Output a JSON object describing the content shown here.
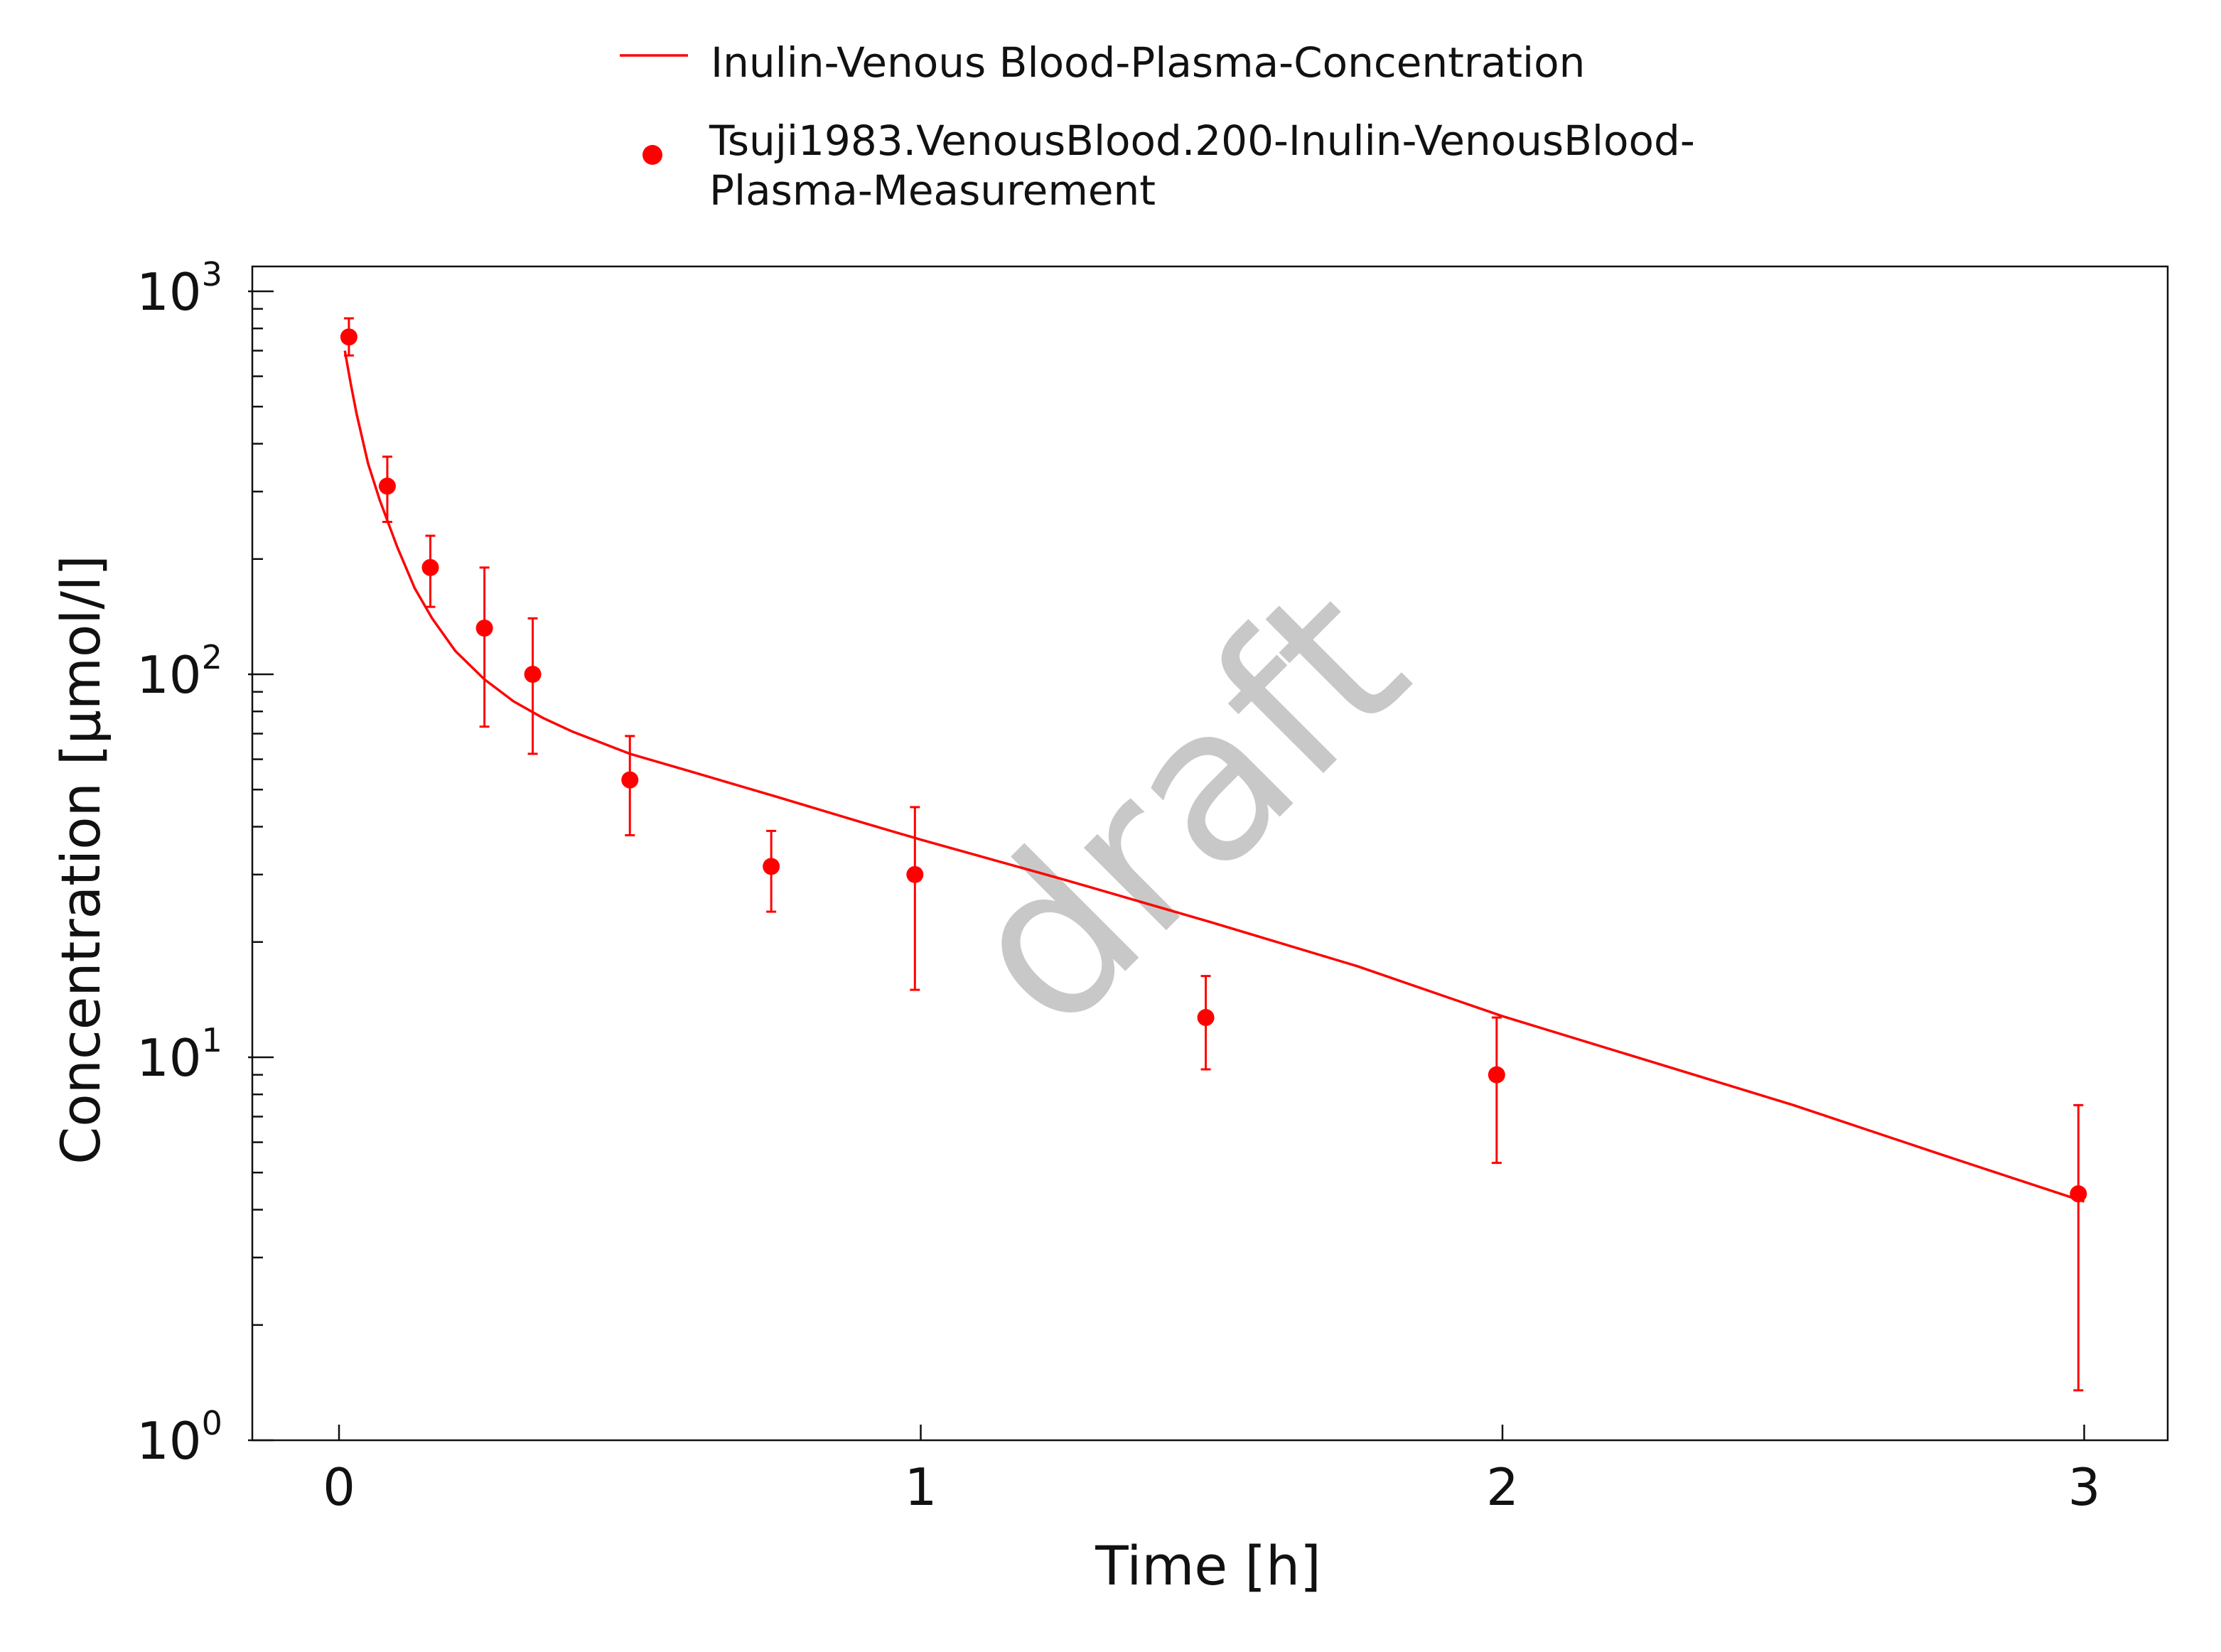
{
  "chart_data": {
    "type": "line",
    "xlabel": "Time [h]",
    "ylabel": "Concentration [µmol/l]",
    "xlim": [
      -0.15,
      3.15
    ],
    "ylim": [
      1,
      1000
    ],
    "yscale": "log",
    "x_ticks": [
      {
        "value": 0,
        "label": "0"
      },
      {
        "value": 1,
        "label": "1"
      },
      {
        "value": 2,
        "label": "2"
      },
      {
        "value": 3,
        "label": "3"
      }
    ],
    "y_ticks": [
      {
        "value": 1,
        "base": "10",
        "exp": "0"
      },
      {
        "value": 10,
        "base": "10",
        "exp": "1"
      },
      {
        "value": 100,
        "base": "10",
        "exp": "2"
      },
      {
        "value": 1000,
        "base": "10",
        "exp": "3"
      }
    ],
    "grid": false,
    "legend_position": "top-center",
    "watermark": "draft",
    "series": [
      {
        "name": "Inulin-Venous Blood-Plasma-Concentration",
        "kind": "line",
        "color": "#ff0000",
        "x": [
          0.01,
          0.02,
          0.03,
          0.05,
          0.07,
          0.1,
          0.13,
          0.16,
          0.2,
          0.25,
          0.3,
          0.35,
          0.4,
          0.5,
          0.6,
          0.75,
          0.9,
          1.0,
          1.25,
          1.5,
          1.75,
          2.0,
          2.25,
          2.5,
          2.75,
          3.0
        ],
        "y": [
          700,
          575,
          480,
          355,
          285,
          215,
          168,
          140,
          115,
          97,
          85,
          77,
          71,
          62,
          56,
          48,
          41,
          37,
          29,
          22.5,
          17.3,
          12.8,
          9.8,
          7.5,
          5.6,
          4.2
        ]
      },
      {
        "name": "Tsuji1983.VenousBlood.200-Inulin-VenousBlood-Plasma-Measurement",
        "name_lines": [
          "Tsuji1983.VenousBlood.200-Inulin-VenousBlood-",
          "Plasma-Measurement"
        ],
        "kind": "scatter",
        "color": "#ff0000",
        "points": [
          {
            "x": 0.017,
            "y": 760,
            "ylo": 680,
            "yhi": 850
          },
          {
            "x": 0.083,
            "y": 310,
            "ylo": 250,
            "yhi": 370
          },
          {
            "x": 0.157,
            "y": 190,
            "ylo": 150,
            "yhi": 230
          },
          {
            "x": 0.25,
            "y": 132,
            "ylo": 73,
            "yhi": 190
          },
          {
            "x": 0.333,
            "y": 100,
            "ylo": 62,
            "yhi": 140
          },
          {
            "x": 0.5,
            "y": 53,
            "ylo": 38,
            "yhi": 69
          },
          {
            "x": 0.743,
            "y": 31.5,
            "ylo": 24,
            "yhi": 39
          },
          {
            "x": 0.99,
            "y": 30,
            "ylo": 15,
            "yhi": 45
          },
          {
            "x": 1.49,
            "y": 12.7,
            "ylo": 9.3,
            "yhi": 16.3
          },
          {
            "x": 1.99,
            "y": 9,
            "ylo": 5.3,
            "yhi": 12.7
          },
          {
            "x": 2.99,
            "y": 4.4,
            "ylo": 1.35,
            "yhi": 7.5
          }
        ]
      }
    ]
  }
}
